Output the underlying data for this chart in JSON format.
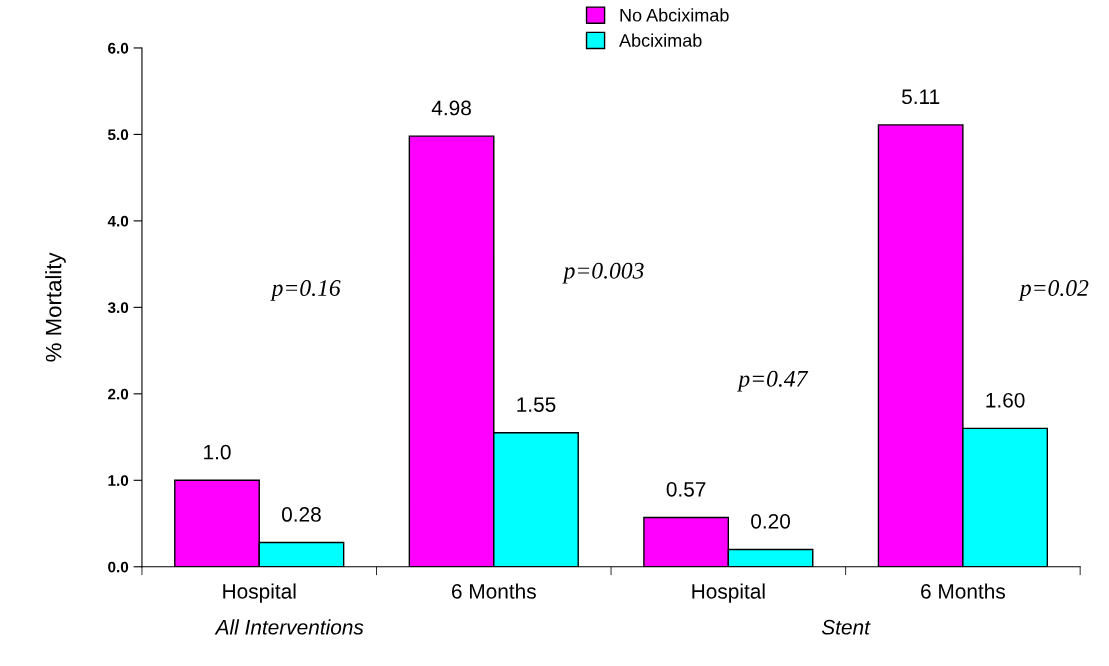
{
  "chart_data": {
    "type": "bar",
    "ylabel": "% Mortality",
    "categories": [
      "Hospital",
      "6 Months",
      "Hospital",
      "6 Months"
    ],
    "series": [
      {
        "name": "No Abciximab",
        "color": "#ff00ff",
        "values": [
          1.0,
          4.98,
          0.57,
          5.11
        ],
        "value_labels": [
          "1.0",
          "4.98",
          "0.57",
          "5.11"
        ]
      },
      {
        "name": "Abciximab",
        "color": "#00ffff",
        "values": [
          0.28,
          1.55,
          0.2,
          1.6
        ],
        "value_labels": [
          "0.28",
          "1.55",
          "0.20",
          "1.60"
        ]
      }
    ],
    "ylim": [
      0,
      6.0
    ],
    "yticks": [
      {
        "value": 0,
        "label": "0.0"
      },
      {
        "value": 1,
        "label": "1.0"
      },
      {
        "value": 2,
        "label": "2.0"
      },
      {
        "value": 3,
        "label": "3.0"
      },
      {
        "value": 4,
        "label": "4.0"
      },
      {
        "value": 5,
        "label": "5.0"
      },
      {
        "value": 6,
        "label": "6.0"
      }
    ],
    "annotations": [
      "All Interventions",
      "Stent",
      "p=0.16",
      "p=0.003",
      "p=0.47",
      "p=0.02"
    ],
    "grid": false,
    "legend": "top"
  }
}
